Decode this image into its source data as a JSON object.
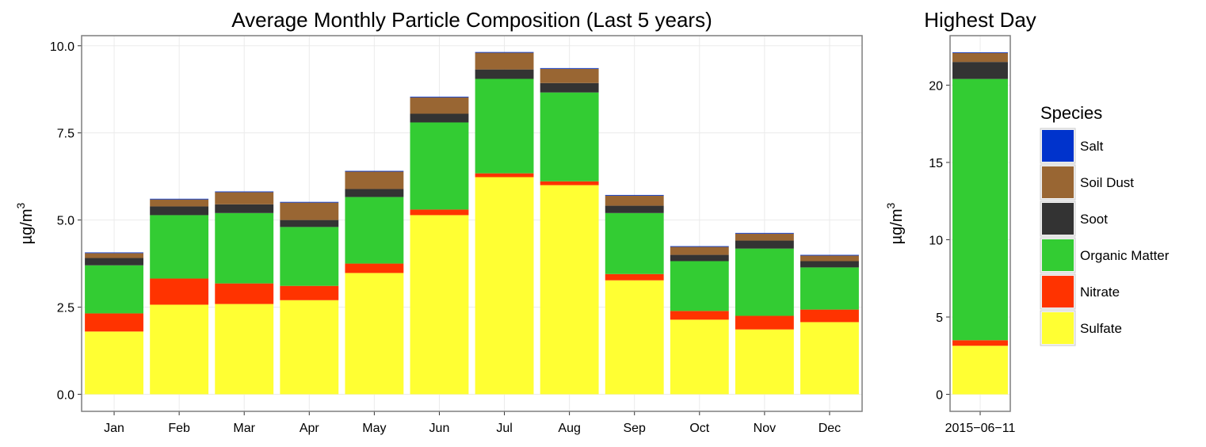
{
  "chart_data": [
    {
      "type": "stacked_bar",
      "title": "Average Monthly Particle Composition (Last 5 years)",
      "y_label": "µg/m",
      "y_label_superscript": "3",
      "categories": [
        "Jan",
        "Feb",
        "Mar",
        "Apr",
        "May",
        "Jun",
        "Jul",
        "Aug",
        "Sep",
        "Oct",
        "Nov",
        "Dec"
      ],
      "series": [
        {
          "name": "Sulfate",
          "color": "#ffff33",
          "values": [
            1.8,
            2.57,
            2.59,
            2.7,
            3.48,
            5.14,
            6.23,
            6.0,
            3.27,
            2.14,
            1.86,
            2.07
          ]
        },
        {
          "name": "Nitrate",
          "color": "#ff3300",
          "values": [
            0.52,
            0.75,
            0.59,
            0.41,
            0.27,
            0.16,
            0.11,
            0.11,
            0.18,
            0.25,
            0.39,
            0.36
          ]
        },
        {
          "name": "Organic Matter",
          "color": "#33cc33",
          "values": [
            1.38,
            1.82,
            2.02,
            1.69,
            1.91,
            2.5,
            2.71,
            2.55,
            1.75,
            1.43,
            1.93,
            1.21
          ]
        },
        {
          "name": "Soot",
          "color": "#333333",
          "values": [
            0.21,
            0.25,
            0.25,
            0.2,
            0.23,
            0.25,
            0.27,
            0.27,
            0.21,
            0.18,
            0.23,
            0.18
          ]
        },
        {
          "name": "Soil Dust",
          "color": "#996633",
          "values": [
            0.14,
            0.2,
            0.35,
            0.5,
            0.5,
            0.47,
            0.48,
            0.41,
            0.29,
            0.23,
            0.2,
            0.16
          ]
        },
        {
          "name": "Salt",
          "color": "#0033cc",
          "values": [
            0.02,
            0.02,
            0.02,
            0.02,
            0.02,
            0.02,
            0.02,
            0.02,
            0.02,
            0.02,
            0.02,
            0.02
          ]
        }
      ],
      "ylim": [
        -0.49,
        10.29
      ],
      "yticks": [
        {
          "value": 0,
          "label": "0.0"
        },
        2.5,
        {
          "value": 5,
          "label": "5.0"
        },
        7.5,
        {
          "value": 10,
          "label": "10.0"
        }
      ],
      "grid": true,
      "legend_title": "Species",
      "legend_position": "right"
    },
    {
      "type": "stacked_bar",
      "title": "Highest Day",
      "y_label": "µg/m",
      "y_label_superscript": "3",
      "categories": [
        "2015−06−11"
      ],
      "series": [
        {
          "color": "#ffff33",
          "values": [
            3.14
          ]
        },
        {
          "color": "#ff3300",
          "values": [
            0.36
          ]
        },
        {
          "color": "#33cc33",
          "values": [
            16.9
          ]
        },
        {
          "color": "#333333",
          "values": [
            1.1
          ]
        },
        {
          "color": "#996633",
          "values": [
            0.6
          ]
        },
        {
          "color": "#0033cc",
          "values": [
            0.02
          ]
        }
      ],
      "ylim": [
        -1.1,
        23.2
      ],
      "yticks": [
        0,
        5,
        10,
        15,
        20
      ],
      "grid": true
    }
  ]
}
